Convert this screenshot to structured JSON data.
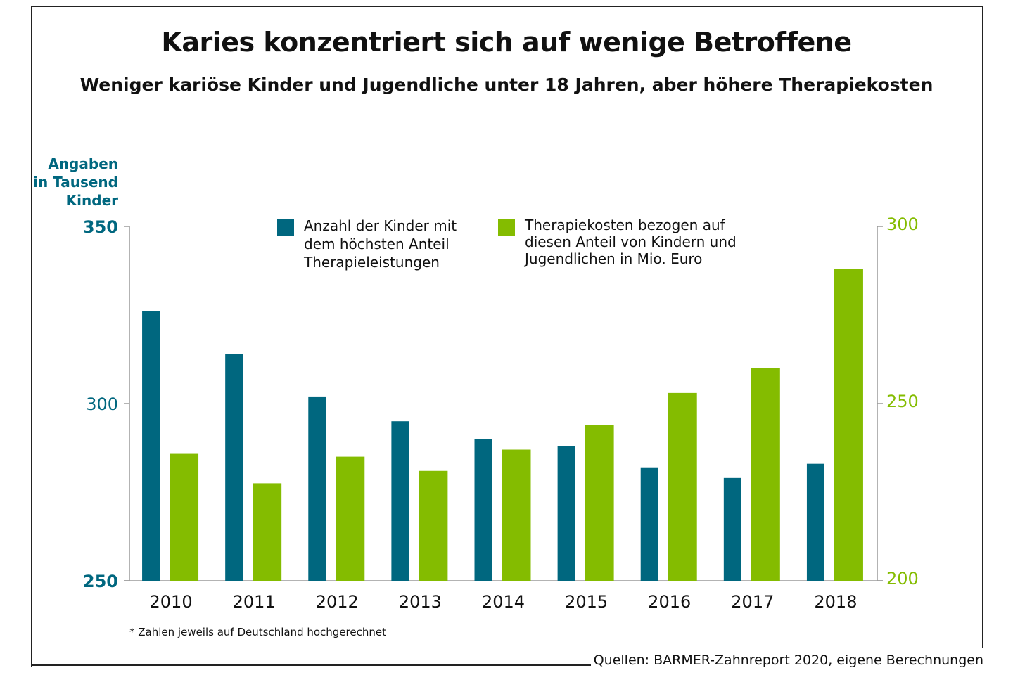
{
  "title": "Karies konzentriert sich auf wenige Betroffene",
  "subtitle": "Weniger kariöse Kinder und Jugendliche unter 18 Jahren, aber höhere Therapiekosten",
  "y_left_label": [
    "Angaben",
    "in Tausend",
    "Kinder"
  ],
  "legend": [
    {
      "lines": [
        "Anzahl der Kinder mit",
        "dem höchsten Anteil",
        "Therapieleistungen"
      ],
      "color": "#00677f"
    },
    {
      "lines": [
        "Therapiekosten bezogen auf",
        "diesen Anteil von Kindern und",
        "Jugendlichen in Mio. Euro"
      ],
      "color": "#84bc00"
    }
  ],
  "footnote": "* Zahlen jeweils auf Deutschland hochgerechnet",
  "source": "Quellen: BARMER-Zahnreport 2020, eigene Berechnungen",
  "colors": {
    "left_axis": "#00677f",
    "right_axis": "#84bc00",
    "axis_line": "#9a9a9a",
    "frame": "#222222"
  },
  "chart_data": {
    "type": "bar",
    "categories": [
      "2010",
      "2011",
      "2012",
      "2013",
      "2014",
      "2015",
      "2016",
      "2017",
      "2018"
    ],
    "series": [
      {
        "name": "Anzahl der Kinder mit dem höchsten Anteil Therapieleistungen",
        "axis": "left",
        "color": "#00677f",
        "values": [
          326,
          314,
          302,
          295,
          290,
          288,
          282,
          279,
          283
        ]
      },
      {
        "name": "Therapiekosten bezogen auf diesen Anteil von Kindern und Jugendlichen in Mio. Euro",
        "axis": "right",
        "color": "#84bc00",
        "values": [
          236,
          227.5,
          235,
          231,
          237,
          244,
          253,
          260,
          288
        ]
      }
    ],
    "y_left": {
      "range": [
        250,
        350
      ],
      "ticks": [
        "250",
        "300",
        "350"
      ]
    },
    "y_right": {
      "range": [
        200,
        300
      ],
      "ticks": [
        "200",
        "250",
        "300"
      ]
    },
    "grid": false,
    "legend_position": "top-center"
  }
}
